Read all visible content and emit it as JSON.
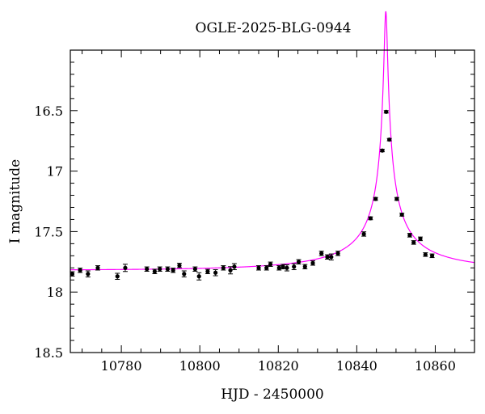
{
  "chart_data": {
    "type": "scatter",
    "title": "OGLE-2025-BLG-0944",
    "xlabel": "HJD - 2450000",
    "ylabel": "I magnitude",
    "xlim": [
      10767,
      10870
    ],
    "ylim": [
      18.5,
      16.0
    ],
    "y_inverted": true,
    "grid": false,
    "x_ticks": [
      10780,
      10800,
      10820,
      10840,
      10860
    ],
    "x_tick_labels": [
      "10780",
      "10800",
      "10820",
      "10840",
      "10860"
    ],
    "y_ticks": [
      16.5,
      17,
      17.5,
      18,
      18.5
    ],
    "y_tick_labels": [
      "16.5",
      "17",
      "17.5",
      "18",
      "18.5"
    ],
    "colors": {
      "data": "#000000",
      "model": "#ff00ff",
      "axes": "#000000"
    },
    "series": [
      {
        "kind": "points",
        "x": [
          10767.5,
          10769.5,
          10771.5,
          10774.0,
          10779.0,
          10781.0,
          10786.5,
          10788.5,
          10789.8,
          10791.8,
          10793.2,
          10794.8,
          10796.0,
          10798.8,
          10799.8,
          10802.0,
          10804.0,
          10806.0,
          10807.8,
          10808.8,
          10815.0,
          10817.0,
          10818.0,
          10820.2,
          10821.2,
          10822.2,
          10824.0,
          10825.2,
          10826.8,
          10828.8,
          10831.0,
          10832.5,
          10833.5,
          10835.2,
          10841.8,
          10843.5,
          10844.8,
          10846.5,
          10847.5,
          10848.3,
          10850.2,
          10851.5,
          10853.5,
          10854.5,
          10856.2,
          10857.5,
          10859.2
        ],
        "y": [
          17.85,
          17.82,
          17.85,
          17.8,
          17.87,
          17.8,
          17.81,
          17.83,
          17.81,
          17.81,
          17.82,
          17.78,
          17.85,
          17.81,
          17.87,
          17.83,
          17.84,
          17.8,
          17.82,
          17.79,
          17.8,
          17.8,
          17.77,
          17.8,
          17.79,
          17.8,
          17.79,
          17.75,
          17.79,
          17.76,
          17.68,
          17.71,
          17.71,
          17.68,
          17.52,
          17.39,
          17.23,
          16.83,
          16.51,
          16.74,
          17.23,
          17.36,
          17.53,
          17.59,
          17.56,
          17.69,
          17.7
        ],
        "yerr": [
          0.018,
          0.018,
          0.025,
          0.018,
          0.025,
          0.03,
          0.018,
          0.018,
          0.018,
          0.018,
          0.018,
          0.018,
          0.025,
          0.018,
          0.03,
          0.018,
          0.025,
          0.018,
          0.03,
          0.025,
          0.018,
          0.018,
          0.018,
          0.018,
          0.018,
          0.025,
          0.025,
          0.018,
          0.018,
          0.018,
          0.018,
          0.018,
          0.025,
          0.018,
          0.018,
          0.012,
          0.012,
          0.01,
          0.01,
          0.01,
          0.012,
          0.012,
          0.015,
          0.015,
          0.015,
          0.015,
          0.015
        ]
      },
      {
        "kind": "line",
        "model": "point-lens microlensing fit",
        "params": {
          "t0": 10847.4,
          "tE": 40.0,
          "u0": 0.01,
          "Ibase": 17.82,
          "fs": 0.0625
        }
      }
    ]
  }
}
